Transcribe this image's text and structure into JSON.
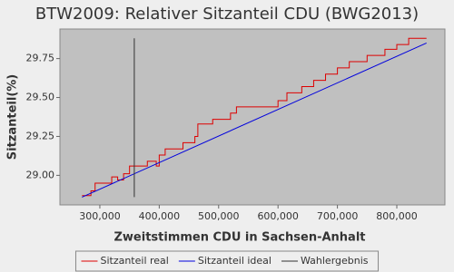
{
  "chart_data": {
    "type": "line",
    "title": "BTW2009: Relativer Sitzanteil CDU (BWG2013)",
    "x_label": "Zweitstimmen CDU in Sachsen-Anhalt",
    "y_label": "Sitzanteil(%)",
    "xlim": [
      232800,
      881000
    ],
    "ylim": [
      28.81,
      29.94
    ],
    "xticks": [
      {
        "value": 300000,
        "label": "300,000"
      },
      {
        "value": 400000,
        "label": "400,000"
      },
      {
        "value": 500000,
        "label": "500,000"
      },
      {
        "value": 600000,
        "label": "600,000"
      },
      {
        "value": 700000,
        "label": "700,000"
      },
      {
        "value": 800000,
        "label": "800,000"
      }
    ],
    "yticks": [
      {
        "value": 29.0,
        "label": "29.00"
      },
      {
        "value": 29.25,
        "label": "29.25"
      },
      {
        "value": 29.5,
        "label": "29.50"
      },
      29.75
    ],
    "grid": false,
    "legend": "bottom",
    "series": [
      {
        "name": "Sitzanteil real",
        "color": "#dd0000",
        "interpolation": "step",
        "x": [
          270000,
          285000,
          292000,
          320000,
          330000,
          340000,
          350000,
          380000,
          395000,
          400000,
          410000,
          440000,
          460000,
          465000,
          490000,
          520000,
          530000,
          600000,
          615000,
          640000,
          660000,
          680000,
          700000,
          720000,
          750000,
          780000,
          800000,
          820000,
          850000
        ],
        "values": [
          28.87,
          28.9,
          28.95,
          28.99,
          28.97,
          29.01,
          29.06,
          29.09,
          29.06,
          29.13,
          29.17,
          29.21,
          29.25,
          29.33,
          29.36,
          29.4,
          29.44,
          29.48,
          29.53,
          29.57,
          29.61,
          29.65,
          29.69,
          29.73,
          29.77,
          29.81,
          29.84,
          29.88,
          29.88
        ]
      },
      {
        "name": "Sitzanteil ideal",
        "color": "#0000dd",
        "interpolation": "linear",
        "x": [
          270000,
          850000
        ],
        "values": [
          28.86,
          29.85
        ]
      },
      {
        "name": "Wahlergebnis",
        "color": "#333333",
        "interpolation": "linear",
        "x": [
          358000,
          358000
        ],
        "values": [
          28.86,
          29.88
        ]
      }
    ]
  }
}
